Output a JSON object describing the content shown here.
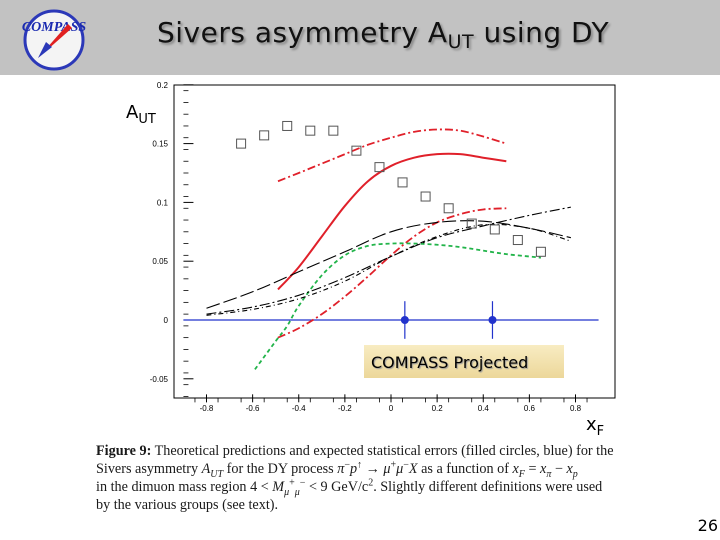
{
  "header": {
    "logo_text": "COMPASS",
    "title_main": "Sivers asymmetry A",
    "title_sub": "UT",
    "title_rest": " using DY"
  },
  "colors": {
    "header_bg": "#c2c2c2",
    "red": "#e0202a",
    "green": "#22b44a",
    "blue": "#2233cc",
    "box_bg": "#f3e2ad"
  },
  "chart_data": {
    "type": "line",
    "title": "",
    "xlabel": "x",
    "xlabel_sub": "F",
    "ylabel": "A",
    "ylabel_sub": "UT",
    "xlim": [
      -0.9,
      0.9
    ],
    "ylim": [
      -0.07,
      0.2
    ],
    "x_ticks": [
      {
        "value": -0.8,
        "label": "-0.8"
      },
      {
        "value": -0.6,
        "label": "-0.6"
      },
      {
        "value": -0.4,
        "label": "-0.4"
      },
      {
        "value": -0.2,
        "label": "-0.2"
      },
      {
        "value": 0,
        "label": "0"
      },
      {
        "value": 0.2,
        "label": "0.2"
      },
      {
        "value": 0.4,
        "label": "0.4"
      },
      {
        "value": 0.6,
        "label": "0.6"
      },
      {
        "value": 0.8,
        "label": "0.8"
      }
    ],
    "y_ticks": [
      {
        "value": -0.05,
        "label": "-0.05"
      },
      {
        "value": 0,
        "label": "0"
      },
      {
        "value": 0.05,
        "label": "0.05"
      },
      {
        "value": 0.1,
        "label": "0.1"
      },
      {
        "value": 0.15,
        "label": "0.15"
      },
      {
        "value": 0.2,
        "label": "0.2"
      }
    ],
    "zero_line": true,
    "series": [
      {
        "style": "red-solid",
        "x": [
          -0.49,
          -0.4,
          -0.3,
          -0.2,
          -0.1,
          0,
          0.1,
          0.2,
          0.3,
          0.4,
          0.5
        ],
        "y": [
          0.026,
          0.045,
          0.071,
          0.097,
          0.118,
          0.131,
          0.138,
          0.141,
          0.141,
          0.138,
          0.135
        ]
      },
      {
        "style": "red-dashdot-upper",
        "x": [
          -0.49,
          -0.4,
          -0.3,
          -0.2,
          -0.1,
          0,
          0.1,
          0.2,
          0.3,
          0.4,
          0.5
        ],
        "y": [
          0.118,
          0.125,
          0.133,
          0.141,
          0.149,
          0.155,
          0.16,
          0.162,
          0.161,
          0.156,
          0.15
        ]
      },
      {
        "style": "red-dashdot-lower",
        "x": [
          -0.49,
          -0.4,
          -0.3,
          -0.2,
          -0.1,
          0,
          0.1,
          0.2,
          0.3,
          0.4,
          0.5
        ],
        "y": [
          -0.015,
          -0.007,
          0.005,
          0.02,
          0.037,
          0.055,
          0.071,
          0.083,
          0.09,
          0.094,
          0.095
        ]
      },
      {
        "style": "green-dashed",
        "x": [
          -0.59,
          -0.5,
          -0.45,
          -0.4,
          -0.3,
          -0.2,
          -0.1,
          0,
          0.1,
          0.2,
          0.3,
          0.4,
          0.5,
          0.6,
          0.65
        ],
        "y": [
          -0.042,
          -0.018,
          -0.005,
          0.012,
          0.038,
          0.055,
          0.063,
          0.065,
          0.065,
          0.064,
          0.062,
          0.059,
          0.056,
          0.054,
          0.053
        ]
      },
      {
        "style": "black-longdash",
        "x": [
          -0.8,
          -0.6,
          -0.4,
          -0.2,
          0,
          0.2,
          0.4,
          0.6,
          0.78
        ],
        "y": [
          0.01,
          0.024,
          0.041,
          0.058,
          0.075,
          0.083,
          0.084,
          0.078,
          0.07
        ]
      },
      {
        "style": "black-dashdot",
        "x": [
          -0.8,
          -0.6,
          -0.4,
          -0.2,
          0,
          0.2,
          0.4,
          0.6,
          0.78
        ],
        "y": [
          0.005,
          0.011,
          0.021,
          0.036,
          0.054,
          0.07,
          0.08,
          0.089,
          0.096
        ]
      },
      {
        "style": "black-mixed",
        "x": [
          -0.8,
          -0.6,
          -0.4,
          -0.2,
          0,
          0.2,
          0.4,
          0.6,
          0.78
        ],
        "y": [
          0.004,
          0.009,
          0.018,
          0.033,
          0.054,
          0.071,
          0.081,
          0.078,
          0.067
        ]
      }
    ],
    "open_squares": {
      "x": [
        -0.65,
        -0.55,
        -0.45,
        -0.35,
        -0.25,
        -0.15,
        -0.05,
        0.05,
        0.15,
        0.25,
        0.35,
        0.45,
        0.55,
        0.65
      ],
      "y": [
        0.15,
        0.157,
        0.165,
        0.161,
        0.161,
        0.144,
        0.13,
        0.117,
        0.105,
        0.095,
        0.082,
        0.077,
        0.068,
        0.058
      ]
    },
    "projected_points": {
      "x": [
        0.06,
        0.44
      ],
      "y": [
        0,
        0
      ],
      "yerr": [
        0.016,
        0.016
      ]
    },
    "annotation": "COMPASS Projected"
  },
  "caption": {
    "figure_label": "Figure 9:",
    "line1_text": " Theoretical predictions and expected statistical errors (filled circles, blue) for the",
    "line2_a": "Sivers asymmetry ",
    "line2_b": " for the DY process ",
    "line2_c": " as a function of ",
    "line3_a": "in the dimuon mass region 4 < ",
    "line3_b": " < 9 GeV/c",
    "line3_c": ". Slightly different definitions were used",
    "line4": "by the various groups (see text)."
  },
  "page_number": "26"
}
